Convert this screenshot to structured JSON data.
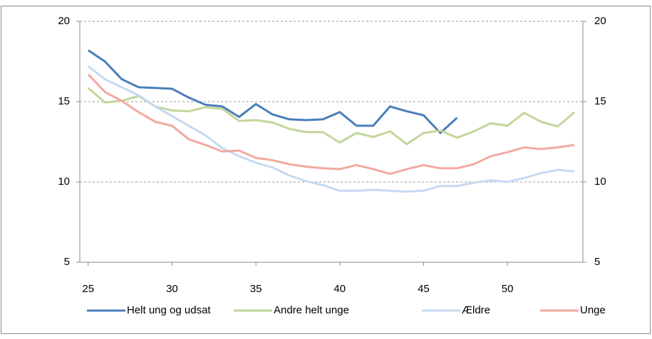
{
  "chart_data": {
    "type": "line",
    "x": [
      25,
      26,
      27,
      28,
      29,
      30,
      31,
      32,
      33,
      34,
      35,
      36,
      37,
      38,
      39,
      40,
      41,
      42,
      43,
      44,
      45,
      46,
      47,
      48,
      49,
      50,
      51,
      52,
      53,
      54
    ],
    "series": [
      {
        "name": "Helt ung og udsat",
        "color": "#4a7ebb",
        "values": [
          18.2,
          17.5,
          16.4,
          15.9,
          15.85,
          15.8,
          15.25,
          14.8,
          14.7,
          14.05,
          14.85,
          14.2,
          13.9,
          13.85,
          13.9,
          14.35,
          13.5,
          13.5,
          14.7,
          14.4,
          14.15,
          13.05,
          14.0,
          null,
          null,
          null,
          null,
          null,
          null,
          null
        ]
      },
      {
        "name": "Andre helt unge",
        "color": "#c3d69b",
        "values": [
          15.85,
          14.95,
          15.05,
          15.35,
          14.7,
          14.45,
          14.4,
          14.65,
          14.55,
          13.8,
          13.85,
          13.7,
          13.3,
          13.1,
          13.1,
          12.45,
          13.05,
          12.8,
          13.15,
          12.35,
          13.05,
          13.2,
          12.75,
          13.15,
          13.65,
          13.5,
          14.3,
          13.75,
          13.45,
          14.35
        ]
      },
      {
        "name": "Ældre",
        "color": "#c6d9f1",
        "values": [
          17.2,
          16.4,
          15.9,
          15.4,
          14.7,
          14.1,
          13.5,
          12.9,
          12.1,
          11.6,
          11.2,
          10.9,
          10.4,
          10.05,
          9.8,
          9.45,
          9.45,
          9.5,
          9.45,
          9.4,
          9.45,
          9.75,
          9.75,
          9.95,
          10.1,
          10.0,
          10.25,
          10.55,
          10.75,
          10.65
        ]
      },
      {
        "name": "Unge",
        "color": "#f2a9a0",
        "values": [
          16.7,
          15.6,
          15.05,
          14.35,
          13.75,
          13.5,
          12.65,
          12.3,
          11.9,
          11.95,
          11.5,
          11.35,
          11.1,
          10.95,
          10.85,
          10.8,
          11.05,
          10.8,
          10.5,
          10.8,
          11.05,
          10.85,
          10.85,
          11.1,
          11.6,
          11.85,
          12.15,
          12.05,
          12.15,
          12.3
        ]
      }
    ],
    "xlim": [
      24.5,
      54.5
    ],
    "xticks": [
      25,
      30,
      35,
      40,
      45,
      50
    ],
    "ylim": [
      5,
      20
    ],
    "yticks": [
      5,
      10,
      15,
      20
    ],
    "y2lim": [
      5,
      20
    ],
    "y2ticks": [
      5,
      10,
      15,
      20
    ],
    "grid": true,
    "legend": "bottom"
  }
}
